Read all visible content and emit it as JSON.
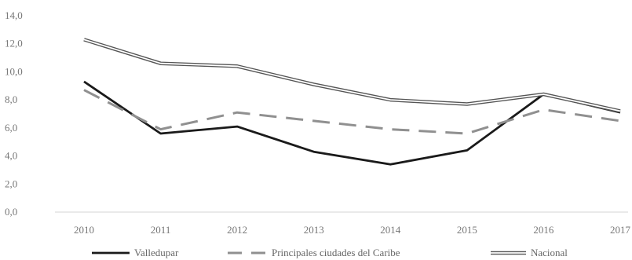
{
  "chart_data": {
    "type": "line",
    "title": "",
    "xlabel": "",
    "ylabel": "",
    "x": [
      "2010",
      "2011",
      "2012",
      "2013",
      "2014",
      "2015",
      "2016",
      "2017"
    ],
    "ylim": [
      0,
      14
    ],
    "yticks": [
      "0,0",
      "2,0",
      "4,0",
      "6,0",
      "8,0",
      "10,0",
      "12,0",
      "14,0"
    ],
    "grid": false,
    "legend_position": "bottom",
    "series": [
      {
        "name": "Valledupar",
        "values": [
          9.3,
          5.6,
          6.1,
          4.3,
          3.4,
          4.4,
          8.4,
          7.1
        ],
        "color": "#1a1a1a",
        "style": "solid"
      },
      {
        "name": "Principales ciudades del Caribe",
        "values": [
          8.7,
          5.9,
          7.1,
          6.5,
          5.9,
          5.6,
          7.3,
          6.5
        ],
        "color": "#909090",
        "style": "dashed"
      },
      {
        "name": "Nacional",
        "values": [
          12.3,
          10.6,
          10.4,
          9.1,
          8.0,
          7.7,
          8.4,
          7.2
        ],
        "color": "#555555",
        "style": "double"
      }
    ]
  }
}
